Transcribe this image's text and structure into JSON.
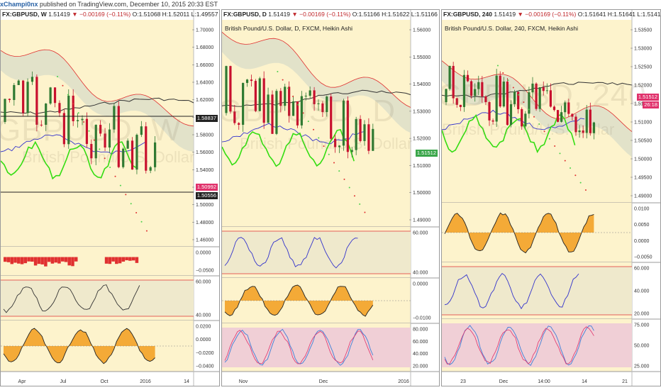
{
  "top_bar": {
    "author": "xChampi0nx",
    "text": "published on TradingView.com, December 10, 2015 20:33 EST"
  },
  "panels": [
    {
      "symbol": "FX:GBPUSD, W",
      "price": "1.51419",
      "change": "▼ −0.00169 (−0.11%)",
      "ohlc": "O:1.51068 H:1.52011 L:1.49557 C:1.50",
      "subtitle": "",
      "watermark": "GBPUSD, W",
      "watermark_sub": "British Pound/U.S. Dollar",
      "price_tags": [
        {
          "text": "1.58837",
          "color": "#222222"
        },
        {
          "text": "1.50992",
          "color": "#e0316b"
        },
        {
          "text": "1.50556",
          "color": "#222222"
        }
      ],
      "main_ticks": [
        "1.70000",
        "1.68000",
        "1.66000",
        "1.64000",
        "1.62000",
        "1.60000",
        "1.58000",
        "1.56000",
        "1.54000",
        "1.52000",
        "1.50000",
        "1.48000",
        "1.46000"
      ],
      "macd_hist_ticks": [
        "0.0000",
        "−0.0500"
      ],
      "rsi_ticks": [
        "60.000",
        "40.000"
      ],
      "osc_ticks": [
        "0.0200",
        "0.0000",
        "−0.0200",
        "−0.0400"
      ],
      "x_ticks": [
        "Apr",
        "Jul",
        "Oct",
        "2016",
        "14"
      ]
    },
    {
      "symbol": "FX:GBPUSD, D",
      "price": "1.51419",
      "change": "▼ −0.00169 (−0.11%)",
      "ohlc": "O:1.51166 H:1.51622 L:1.51166 C:1.51",
      "subtitle": "British Pound/U.S. Dollar, D, FXCM, Heikin Ashi",
      "watermark": "GBPUSD, D",
      "watermark_sub": "British Pound/U.S. Dollar",
      "price_tags": [
        {
          "text": "1.51512",
          "color": "#3aa64a"
        }
      ],
      "main_ticks": [
        "1.56000",
        "1.55000",
        "1.54000",
        "1.53000",
        "1.52000",
        "1.51000",
        "1.50000",
        "1.49000"
      ],
      "rsi_ticks": [
        "60.000",
        "40.000"
      ],
      "osc_ticks": [
        "0.0000",
        "−0.0100"
      ],
      "stoch_ticks": [
        "80.000",
        "60.000",
        "40.000",
        "20.000"
      ],
      "x_ticks": [
        "Nov",
        "Dec",
        "2016"
      ]
    },
    {
      "symbol": "FX:GBPUSD, 240",
      "price": "1.51419",
      "change": "▼ −0.00169 (−0.11%)",
      "ohlc": "O:1.51641 H:1.51641 L:1.51417 C:1.51",
      "subtitle": "British Pound/U.S. Dollar, 240, FXCM, Heikin Ashi",
      "watermark": "GBPUSD, 240",
      "watermark_sub": "British Pound/U.S. Dollar",
      "price_tags": [
        {
          "text": "1.51512",
          "color": "#e0316b"
        },
        {
          "text": "26:18",
          "color": "#e0316b"
        }
      ],
      "main_ticks": [
        "1.53500",
        "1.53000",
        "1.52500",
        "1.52000",
        "1.51500",
        "1.51000",
        "1.50500",
        "1.50000",
        "1.49500",
        "1.49000"
      ],
      "osc_ticks": [
        "0.0100",
        "0.0050",
        "0.0000",
        "−0.0050"
      ],
      "rsi_ticks": [
        "60.000",
        "40.000",
        "20.000"
      ],
      "stoch_ticks": [
        "75.000",
        "50.000",
        "25.000"
      ],
      "x_ticks": [
        "23",
        "Dec",
        "14:00",
        "14",
        "21"
      ]
    }
  ],
  "colors": {
    "bg": "#fdf3cc",
    "up": "#2f7a32",
    "down": "#c8102e",
    "cloud": "#d8dcc8",
    "green_line": "#33dd11",
    "blue_line": "#3333cc",
    "red_line": "#e03030",
    "macd_fill": "#f29c1c",
    "rsi_fill": "#efe9cc",
    "stoch_fill": "#f0cfd6"
  },
  "chart_data": [
    {
      "type": "line",
      "title": "FX:GBPUSD, W",
      "ylim": [
        1.44,
        1.71
      ],
      "x": [
        "Apr",
        "Jul",
        "Oct",
        "2016",
        "14"
      ],
      "series": []
    },
    {
      "type": "line",
      "title": "FX:GBPUSD, D",
      "ylim": [
        1.485,
        1.565
      ],
      "x": [
        "Nov",
        "Dec",
        "2016"
      ],
      "series": []
    },
    {
      "type": "line",
      "title": "FX:GBPUSD, 240",
      "ylim": [
        1.487,
        1.536
      ],
      "x": [
        "23",
        "Dec",
        "14:00",
        "14",
        "21"
      ],
      "series": []
    }
  ]
}
